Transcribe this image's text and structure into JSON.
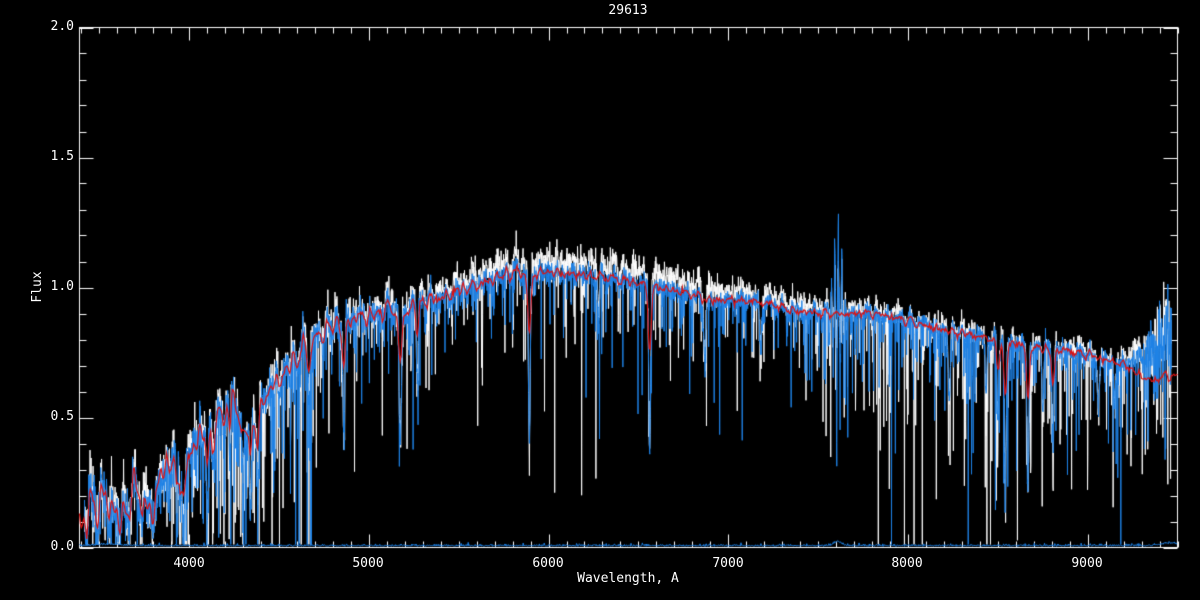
{
  "chart_data": {
    "type": "line",
    "title": "29613",
    "xlabel": "Wavelength, A",
    "ylabel": "Flux",
    "xlim": [
      3390,
      9500
    ],
    "ylim": [
      0.0,
      2.0
    ],
    "background_color": "#000000",
    "axis_color": "#ffffff",
    "grid": false,
    "legend": "none",
    "x_major_ticks": [
      4000,
      5000,
      6000,
      7000,
      8000,
      9000
    ],
    "x_tick_labels": [
      "4000",
      "5000",
      "6000",
      "7000",
      "8000",
      "9000"
    ],
    "x_minor_step": 100,
    "y_major_ticks": [
      0.0,
      0.5,
      1.0,
      1.5,
      2.0
    ],
    "y_tick_labels": [
      "0.0",
      "0.5",
      "1.0",
      "1.5",
      "2.0"
    ],
    "y_minor_step": 0.1,
    "series": [
      {
        "name": "observed-spectrum-unsmoothed",
        "color": "#ffffff"
      },
      {
        "name": "observed-spectrum",
        "color": "#1e82e6"
      },
      {
        "name": "template-fit",
        "color": "#dd1111"
      },
      {
        "name": "error-spectrum",
        "color": "#1e82e6"
      }
    ],
    "continuum_points": [
      [
        3390,
        0.11
      ],
      [
        3450,
        0.14
      ],
      [
        3520,
        0.19
      ],
      [
        3575,
        0.15
      ],
      [
        3625,
        0.09
      ],
      [
        3675,
        0.2
      ],
      [
        3725,
        0.23
      ],
      [
        3765,
        0.11
      ],
      [
        3805,
        0.17
      ],
      [
        3845,
        0.28
      ],
      [
        3885,
        0.33
      ],
      [
        3915,
        0.34
      ],
      [
        3950,
        0.27
      ],
      [
        3990,
        0.31
      ],
      [
        4030,
        0.4
      ],
      [
        4070,
        0.45
      ],
      [
        4130,
        0.43
      ],
      [
        4190,
        0.52
      ],
      [
        4250,
        0.57
      ],
      [
        4300,
        0.5
      ],
      [
        4360,
        0.47
      ],
      [
        4430,
        0.59
      ],
      [
        4510,
        0.65
      ],
      [
        4610,
        0.74
      ],
      [
        4710,
        0.81
      ],
      [
        4810,
        0.86
      ],
      [
        4910,
        0.88
      ],
      [
        5010,
        0.89
      ],
      [
        5110,
        0.92
      ],
      [
        5210,
        0.91
      ],
      [
        5310,
        0.95
      ],
      [
        5410,
        0.96
      ],
      [
        5510,
        0.99
      ],
      [
        5610,
        1.01
      ],
      [
        5710,
        1.04
      ],
      [
        5810,
        1.06
      ],
      [
        5910,
        1.05
      ],
      [
        6010,
        1.06
      ],
      [
        6160,
        1.05
      ],
      [
        6310,
        1.04
      ],
      [
        6460,
        1.02
      ],
      [
        6610,
        1.0
      ],
      [
        6760,
        0.98
      ],
      [
        6910,
        0.95
      ],
      [
        7060,
        0.95
      ],
      [
        7210,
        0.94
      ],
      [
        7360,
        0.91
      ],
      [
        7510,
        0.9
      ],
      [
        7660,
        0.9
      ],
      [
        7810,
        0.9
      ],
      [
        7960,
        0.88
      ],
      [
        8110,
        0.85
      ],
      [
        8260,
        0.83
      ],
      [
        8410,
        0.81
      ],
      [
        8560,
        0.79
      ],
      [
        8710,
        0.77
      ],
      [
        8860,
        0.76
      ],
      [
        9010,
        0.74
      ],
      [
        9110,
        0.72
      ],
      [
        9210,
        0.71
      ],
      [
        9310,
        0.74
      ],
      [
        9400,
        0.78
      ],
      [
        9470,
        0.82
      ]
    ],
    "template_points": [
      [
        3390,
        0.1
      ],
      [
        3450,
        0.14
      ],
      [
        3520,
        0.19
      ],
      [
        3575,
        0.15
      ],
      [
        3625,
        0.09
      ],
      [
        3675,
        0.2
      ],
      [
        3725,
        0.23
      ],
      [
        3765,
        0.11
      ],
      [
        3805,
        0.17
      ],
      [
        3845,
        0.28
      ],
      [
        3885,
        0.33
      ],
      [
        3915,
        0.34
      ],
      [
        3950,
        0.27
      ],
      [
        3990,
        0.31
      ],
      [
        4030,
        0.4
      ],
      [
        4070,
        0.45
      ],
      [
        4130,
        0.43
      ],
      [
        4190,
        0.52
      ],
      [
        4250,
        0.57
      ],
      [
        4300,
        0.5
      ],
      [
        4360,
        0.47
      ],
      [
        4430,
        0.59
      ],
      [
        4510,
        0.65
      ],
      [
        4610,
        0.74
      ],
      [
        4710,
        0.81
      ],
      [
        4810,
        0.86
      ],
      [
        4910,
        0.88
      ],
      [
        5010,
        0.89
      ],
      [
        5110,
        0.92
      ],
      [
        5210,
        0.91
      ],
      [
        5310,
        0.95
      ],
      [
        5410,
        0.96
      ],
      [
        5510,
        0.99
      ],
      [
        5610,
        1.01
      ],
      [
        5710,
        1.04
      ],
      [
        5810,
        1.06
      ],
      [
        5910,
        1.05
      ],
      [
        6010,
        1.06
      ],
      [
        6160,
        1.05
      ],
      [
        6310,
        1.04
      ],
      [
        6460,
        1.02
      ],
      [
        6610,
        1.0
      ],
      [
        6760,
        0.98
      ],
      [
        6910,
        0.95
      ],
      [
        7060,
        0.95
      ],
      [
        7210,
        0.94
      ],
      [
        7360,
        0.91
      ],
      [
        7510,
        0.9
      ],
      [
        7660,
        0.9
      ],
      [
        7810,
        0.9
      ],
      [
        7960,
        0.88
      ],
      [
        8110,
        0.85
      ],
      [
        8260,
        0.83
      ],
      [
        8410,
        0.81
      ],
      [
        8560,
        0.79
      ],
      [
        8710,
        0.77
      ],
      [
        8860,
        0.76
      ],
      [
        9010,
        0.74
      ],
      [
        9110,
        0.72
      ],
      [
        9210,
        0.7
      ],
      [
        9290,
        0.66
      ],
      [
        9370,
        0.64
      ],
      [
        9430,
        0.66
      ],
      [
        9500,
        0.66
      ]
    ],
    "absorption_lines": [
      {
        "wl": 3933,
        "depth": 0.85,
        "width": 6,
        "stellar": true
      },
      {
        "wl": 3968,
        "depth": 0.8,
        "width": 6,
        "stellar": true
      },
      {
        "wl": 4101,
        "depth": 0.75,
        "width": 7,
        "stellar": true
      },
      {
        "wl": 4227,
        "depth": 0.4,
        "width": 5,
        "stellar": true
      },
      {
        "wl": 4300,
        "depth": 0.5,
        "width": 9,
        "stellar": true
      },
      {
        "wl": 4340,
        "depth": 0.7,
        "width": 6,
        "stellar": true
      },
      {
        "wl": 4383,
        "depth": 0.55,
        "width": 6,
        "stellar": true
      },
      {
        "wl": 4668,
        "depth": 0.3,
        "width": 6,
        "stellar": true
      },
      {
        "wl": 4861,
        "depth": 0.55,
        "width": 7,
        "stellar": true
      },
      {
        "wl": 5175,
        "depth": 0.55,
        "width": 9,
        "stellar": true
      },
      {
        "wl": 5270,
        "depth": 0.3,
        "width": 6,
        "stellar": true
      },
      {
        "wl": 5893,
        "depth": 0.62,
        "width": 7,
        "stellar": true
      },
      {
        "wl": 6280,
        "depth": 0.18,
        "width": 7,
        "stellar": false
      },
      {
        "wl": 6563,
        "depth": 0.65,
        "width": 7,
        "stellar": true
      },
      {
        "wl": 6870,
        "depth": 0.25,
        "width": 8,
        "stellar": false
      },
      {
        "wl": 7180,
        "depth": 0.18,
        "width": 9,
        "stellar": false
      },
      {
        "wl": 8230,
        "depth": 0.3,
        "width": 8,
        "stellar": false
      },
      {
        "wl": 8435,
        "depth": 0.28,
        "width": 7,
        "stellar": false
      },
      {
        "wl": 8500,
        "depth": 0.38,
        "width": 7,
        "stellar": true
      },
      {
        "wl": 8542,
        "depth": 0.7,
        "width": 7,
        "stellar": true
      },
      {
        "wl": 8668,
        "depth": 0.7,
        "width": 7,
        "stellar": true
      },
      {
        "wl": 8750,
        "depth": 0.3,
        "width": 6,
        "stellar": false
      },
      {
        "wl": 8807,
        "depth": 0.45,
        "width": 7,
        "stellar": true
      },
      {
        "wl": 9060,
        "depth": 0.25,
        "width": 8,
        "stellar": false
      },
      {
        "wl": 9150,
        "depth": 0.22,
        "width": 8,
        "stellar": false
      }
    ],
    "telluric_artifact": {
      "center": 7608,
      "half_window": 70,
      "amplitude": 0.34,
      "sigma": 24
    },
    "noisy_red_end_start": 9240,
    "data_range": {
      "start_wl": 3418,
      "end_wl": 9467
    }
  }
}
